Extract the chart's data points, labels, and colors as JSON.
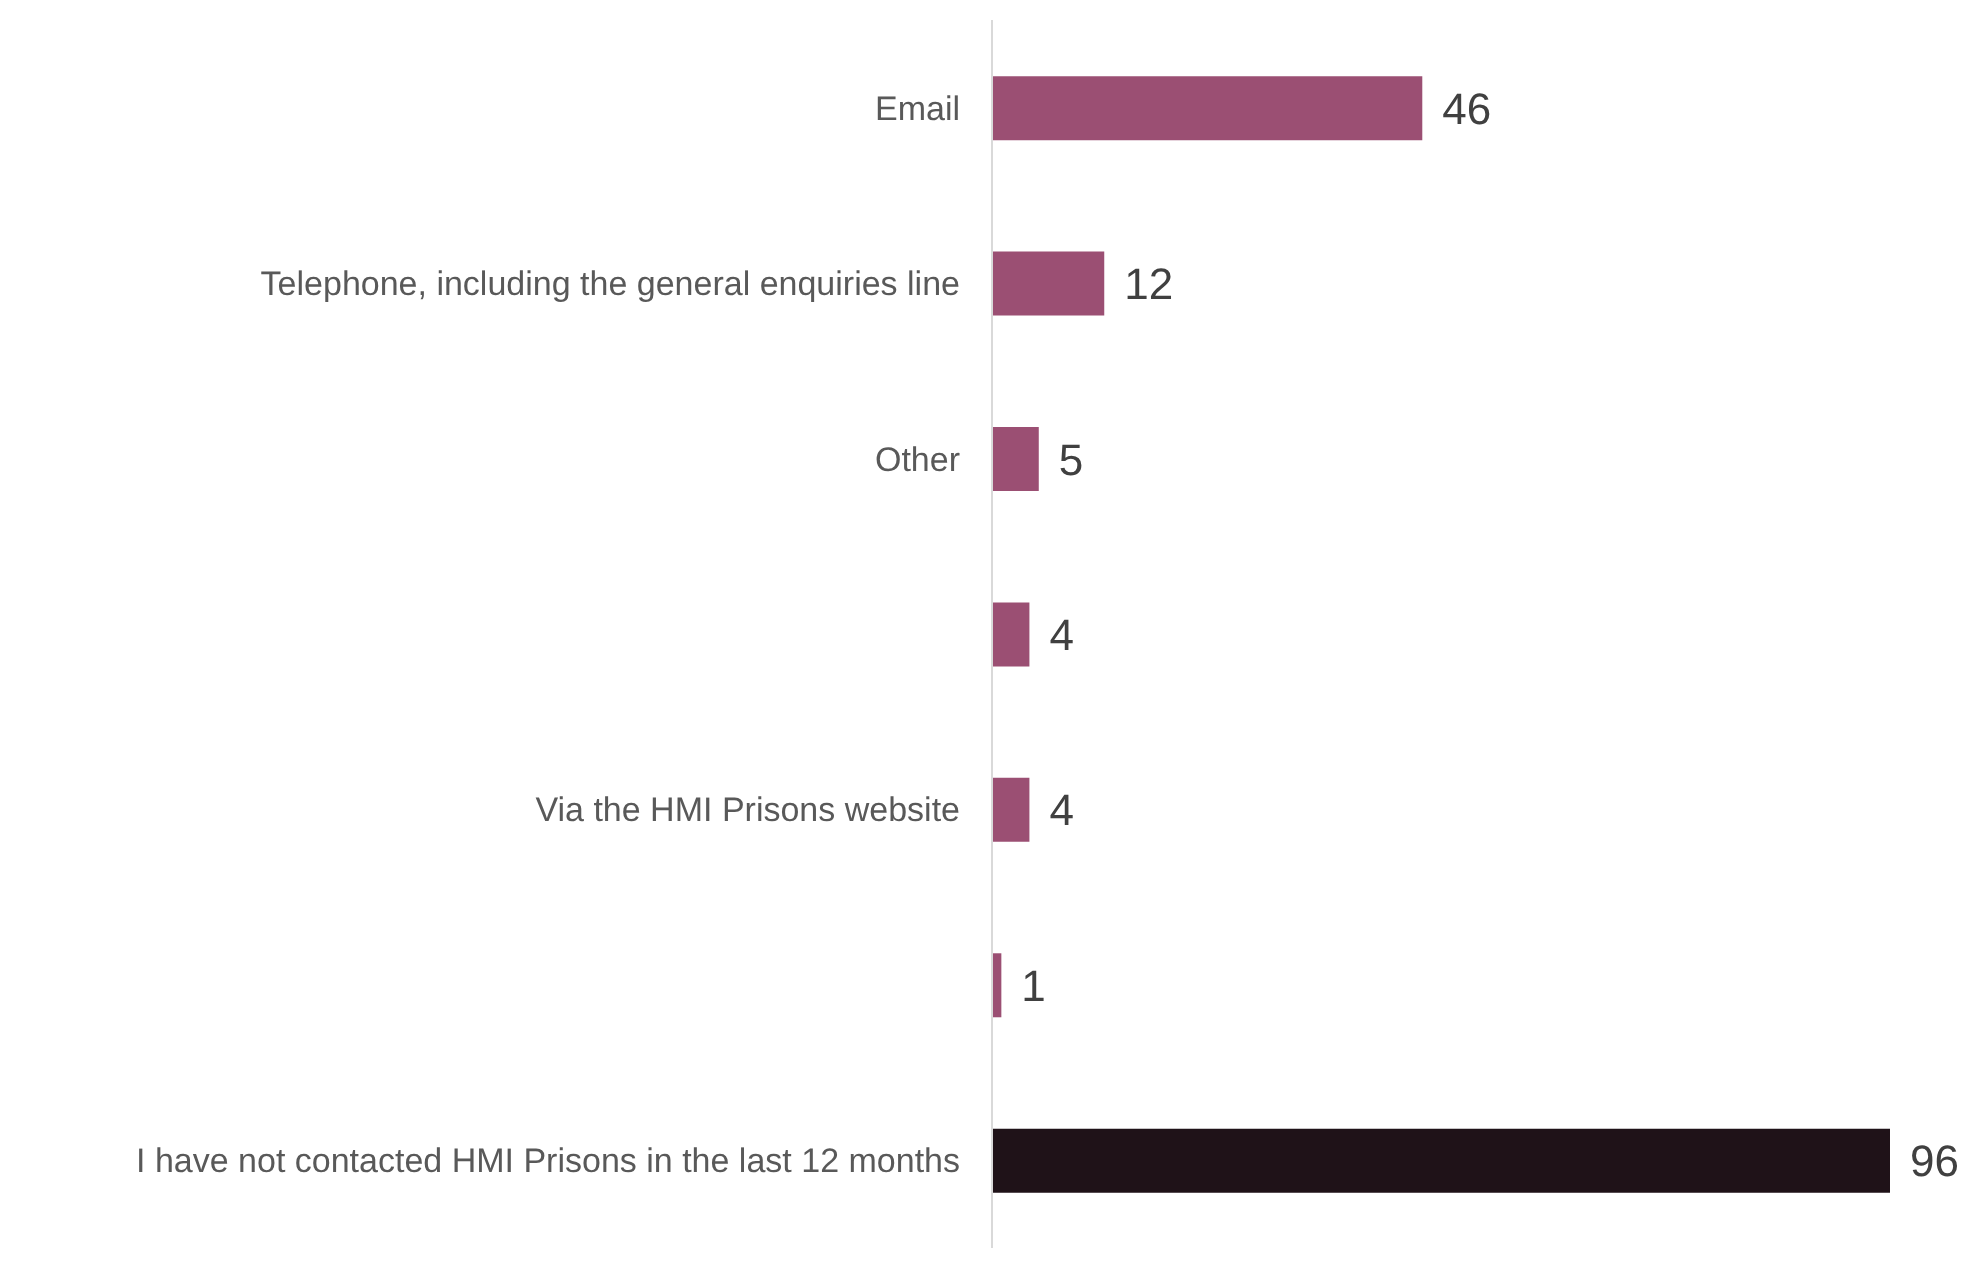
{
  "chart_data": {
    "type": "bar",
    "orientation": "horizontal",
    "categories": [
      "Email",
      "Telephone, including the general enquiries line",
      "Other",
      null,
      "Via the HMI Prisons website",
      null,
      "I have not contacted HMI Prisons in the last 12 months"
    ],
    "values": [
      46,
      12,
      5,
      4,
      4,
      1,
      96
    ],
    "colors": [
      "#9b4f73",
      "#9b4f73",
      "#9b4f73",
      "#9b4f73",
      "#9b4f73",
      "#9b4f73",
      "#1f1218"
    ],
    "data_labels": true
  }
}
